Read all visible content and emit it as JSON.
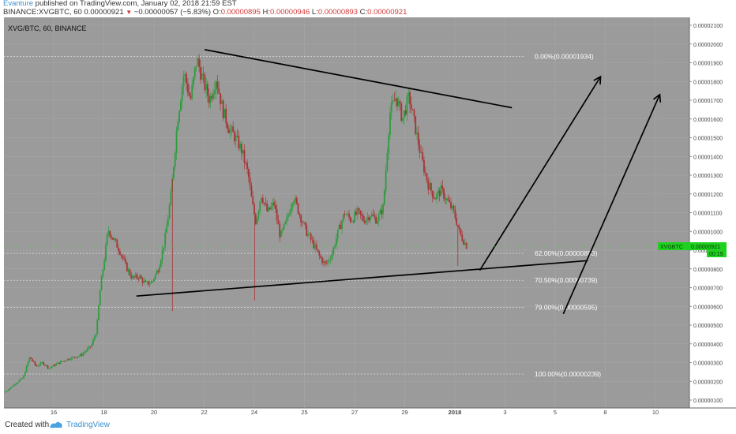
{
  "header": {
    "author": "Evanture",
    "published": " published on TradingView.com, January 02, 2018 21:59 EST",
    "symbol_line": "BINANCE:XVGBTC, 60  0.00000921",
    "change": " −0.00000057 (−5.83%)",
    "o_label": "O:",
    "o_value": "0.00000895",
    "h_label": "H:",
    "h_value": "0.00000946",
    "l_label": "L:",
    "l_value": "0.00000893",
    "c_label": "C:",
    "c_value": "0.00000921"
  },
  "footer": {
    "created_with": "Created with",
    "brand": "TradingView"
  },
  "chart_data": {
    "type": "candlestick",
    "title": "XVG/BTC, 60, BINANCE",
    "ylim": [
      1e-06,
      2.1e-05
    ],
    "y_ticks": [
      "0.00000100",
      "0.00000200",
      "0.00000300",
      "0.00000400",
      "0.00000500",
      "0.00000600",
      "0.00000700",
      "0.00000800",
      "0.00000900",
      "0.00001000",
      "0.00001100",
      "0.00001200",
      "0.00001300",
      "0.00001400",
      "0.00001500",
      "0.00001600",
      "0.00001700",
      "0.00001800",
      "0.00001900",
      "0.00002000",
      "0.00002100"
    ],
    "x_ticks": [
      "16",
      "18",
      "20",
      "22",
      "24",
      "25",
      "27",
      "29",
      "2018",
      "3",
      "5",
      "8",
      "10"
    ],
    "grid": true,
    "price_label": {
      "symbol": "XVGBTC",
      "value": "0.00000921",
      "countdown": "00:19"
    },
    "fibonacci": [
      {
        "label": "0.00%(0.00001934)",
        "value": 1.934e-05
      },
      {
        "label": "62.00%(0.00000883)",
        "value": 8.83e-06
      },
      {
        "label": "70.50%(0.00000739)",
        "value": 7.39e-06
      },
      {
        "label": "79.00%(0.00000595)",
        "value": 5.95e-06
      },
      {
        "label": "100.00%(0.00000239)",
        "value": 2.39e-06
      }
    ],
    "price_path": [
      [
        0,
        1.4e-06
      ],
      [
        0.5,
        1.65e-06
      ],
      [
        1,
        1.95e-06
      ],
      [
        1.5,
        2.2e-06
      ],
      [
        2,
        3.3e-06
      ],
      [
        2.5,
        2.8e-06
      ],
      [
        3,
        3e-06
      ],
      [
        3.5,
        2.7e-06
      ],
      [
        4,
        2.9e-06
      ],
      [
        5,
        3.2e-06
      ],
      [
        6,
        3.4e-06
      ],
      [
        6.8,
        3.9e-06
      ],
      [
        7.2,
        4.7e-06
      ],
      [
        7.5,
        7e-06
      ],
      [
        7.8,
        8.5e-06
      ],
      [
        8.1,
        1.01e-05
      ],
      [
        8.5,
        9.6e-06
      ],
      [
        9,
        9e-06
      ],
      [
        9.5,
        8.1e-06
      ],
      [
        10,
        7.5e-06
      ],
      [
        10.5,
        7.6e-06
      ],
      [
        11,
        7.2e-06
      ],
      [
        11.5,
        7.3e-06
      ],
      [
        12,
        8e-06
      ],
      [
        12.5,
        9.5e-06
      ],
      [
        13,
        1.2e-05
      ],
      [
        13.5,
        1.6e-05
      ],
      [
        14,
        1.85e-05
      ],
      [
        14.5,
        1.7e-05
      ],
      [
        15,
        1.92e-05
      ],
      [
        15.5,
        1.8e-05
      ],
      [
        16,
        1.7e-05
      ],
      [
        16.5,
        1.82e-05
      ],
      [
        17,
        1.65e-05
      ],
      [
        17.5,
        1.55e-05
      ],
      [
        18,
        1.5e-05
      ],
      [
        18.5,
        1.43e-05
      ],
      [
        19,
        1.3e-05
      ],
      [
        19.3,
        1.15e-05
      ],
      [
        19.6,
        1.05e-05
      ],
      [
        20,
        1.2e-05
      ],
      [
        20.5,
        1.1e-05
      ],
      [
        21,
        1.15e-05
      ],
      [
        21.5,
        9.7e-06
      ],
      [
        22,
        1.06e-05
      ],
      [
        22.5,
        1.19e-05
      ],
      [
        23,
        1.09e-05
      ],
      [
        23.5,
        1e-05
      ],
      [
        24,
        9.4e-06
      ],
      [
        24.5,
        8.7e-06
      ],
      [
        25,
        8.2e-06
      ],
      [
        25.5,
        8.8e-06
      ],
      [
        26,
        1e-05
      ],
      [
        26.5,
        1.1e-05
      ],
      [
        27,
        1.06e-05
      ],
      [
        27.5,
        1.1e-05
      ],
      [
        28,
        1.06e-05
      ],
      [
        28.5,
        1.09e-05
      ],
      [
        29,
        1.06e-05
      ],
      [
        29.5,
        1.13e-05
      ],
      [
        30,
        1.63e-05
      ],
      [
        30.5,
        1.72e-05
      ],
      [
        31,
        1.6e-05
      ],
      [
        31.5,
        1.72e-05
      ],
      [
        32,
        1.55e-05
      ],
      [
        32.5,
        1.38e-05
      ],
      [
        33,
        1.25e-05
      ],
      [
        33.5,
        1.18e-05
      ],
      [
        34,
        1.22e-05
      ],
      [
        34.5,
        1.16e-05
      ],
      [
        35,
        1.1e-05
      ],
      [
        35.5,
        9.8e-06
      ],
      [
        36,
        9.21e-06
      ]
    ],
    "spikes": [
      {
        "t": 13.1,
        "low": 5.75e-06
      },
      {
        "t": 19.5,
        "low": 6.3e-06
      },
      {
        "t": 35.3,
        "low": 8.15e-06
      }
    ],
    "drawings": [
      {
        "type": "line",
        "name": "upper-trendline",
        "p1": [
          15.6,
          1.97e-05
        ],
        "p2": [
          39.5,
          1.66e-05
        ]
      },
      {
        "type": "line",
        "name": "lower-trendline",
        "p1": [
          10.3,
          6.55e-06
        ],
        "p2": [
          45.4,
          8.44e-06
        ]
      },
      {
        "type": "arrow",
        "name": "arrow-1",
        "p1": [
          37,
          7.92e-06
        ],
        "p2": [
          46.4,
          1.826e-05
        ]
      },
      {
        "type": "arrow",
        "name": "arrow-2",
        "p1": [
          43.5,
          5.6e-06
        ],
        "p2": [
          51,
          1.73e-05
        ]
      }
    ],
    "t_max": 53
  }
}
